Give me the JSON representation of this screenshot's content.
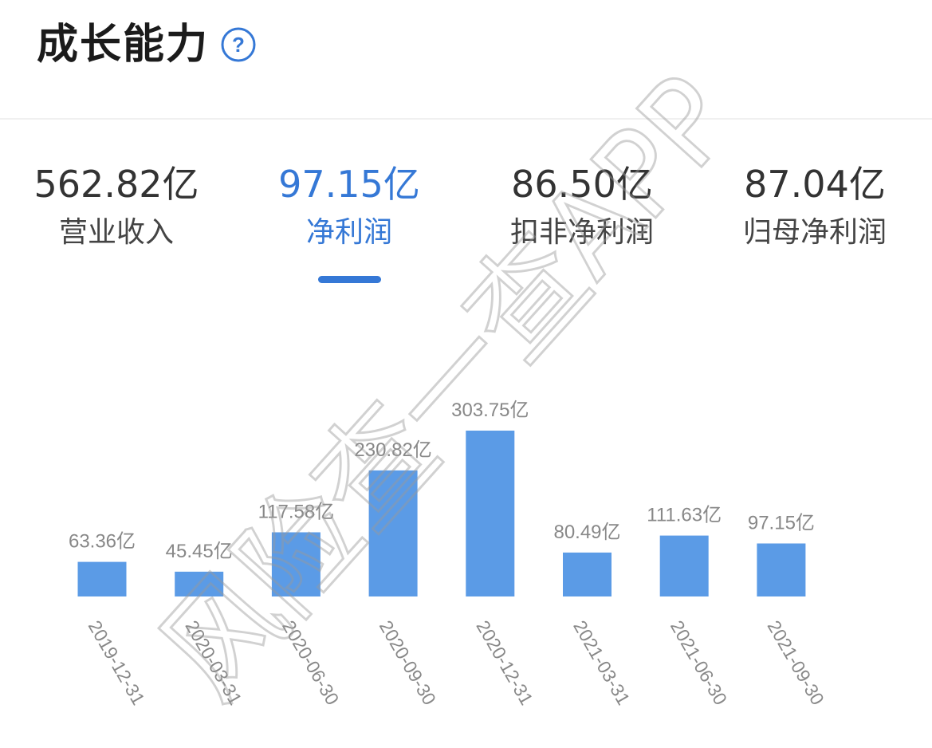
{
  "header": {
    "title": "成长能力",
    "help_icon": "question-circle-icon"
  },
  "metrics": [
    {
      "value": "562.82亿",
      "label": "营业收入",
      "active": false
    },
    {
      "value": "97.15亿",
      "label": "净利润",
      "active": true
    },
    {
      "value": "86.50亿",
      "label": "扣非净利润",
      "active": false
    },
    {
      "value": "87.04亿",
      "label": "归母净利润",
      "active": false
    }
  ],
  "colors": {
    "accent": "#3578d6",
    "bar": "#5b9be6",
    "title_text": "#1b1b1b",
    "muted_text": "#888888"
  },
  "chart_data": {
    "type": "bar",
    "title": "",
    "xlabel": "",
    "ylabel": "",
    "unit": "亿",
    "categories": [
      "2019-12-31",
      "2020-03-31",
      "2020-06-30",
      "2020-09-30",
      "2020-12-31",
      "2021-03-31",
      "2021-06-30",
      "2021-09-30"
    ],
    "values": [
      63.36,
      45.45,
      117.58,
      230.82,
      303.75,
      80.49,
      111.63,
      97.15
    ],
    "data_labels": [
      "63.36亿",
      "45.45亿",
      "117.58亿",
      "230.82亿",
      "303.75亿",
      "80.49亿",
      "111.63亿",
      "97.15亿"
    ],
    "ylim": [
      0,
      303.75
    ],
    "grid": false,
    "legend": "none"
  },
  "watermark": {
    "text": "风险查一查APP"
  }
}
